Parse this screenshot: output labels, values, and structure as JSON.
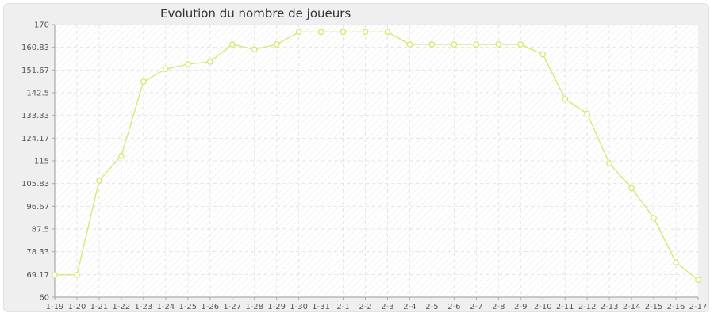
{
  "chart_data": {
    "type": "line",
    "title": "Evolution du nombre de joueurs",
    "xlabel": "",
    "ylabel": "",
    "ylim": [
      60,
      170
    ],
    "y_ticks": [
      "60",
      "69.17",
      "78.33",
      "87.5",
      "96.67",
      "105.83",
      "115",
      "124.17",
      "133.33",
      "142.5",
      "151.67",
      "160.83",
      "170"
    ],
    "categories": [
      "1-19",
      "1-20",
      "1-21",
      "1-22",
      "1-23",
      "1-24",
      "1-25",
      "1-26",
      "1-27",
      "1-28",
      "1-29",
      "1-30",
      "1-31",
      "2-1",
      "2-2",
      "2-3",
      "2-4",
      "2-5",
      "2-6",
      "2-7",
      "2-8",
      "2-9",
      "2-10",
      "2-11",
      "2-12",
      "2-13",
      "2-14",
      "2-15",
      "2-16",
      "2-17"
    ],
    "series": [
      {
        "values": [
          69,
          69,
          107,
          117,
          147,
          152,
          154,
          155,
          162,
          160,
          162,
          167,
          167,
          167,
          167,
          167,
          162,
          162,
          162,
          162,
          162,
          162,
          158,
          140,
          134,
          114,
          104,
          92,
          74,
          67
        ]
      }
    ],
    "grid": true,
    "legend": "none",
    "colors": {
      "line": "#d4e86a",
      "marker_fill": "#ffffff",
      "grid": "#e4e4e4",
      "plot_bg": "#ffffff",
      "frame_bg": "#efefef"
    }
  }
}
